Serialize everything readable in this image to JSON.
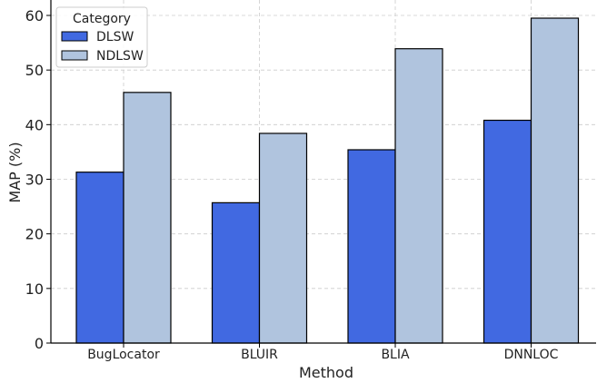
{
  "chart_data": {
    "type": "bar",
    "categories": [
      "BugLocator",
      "BLUIR",
      "BLIA",
      "DNNLOC"
    ],
    "series": [
      {
        "name": "DLSW",
        "values": [
          31.3,
          25.7,
          35.4,
          40.8
        ],
        "color": "#4169e1"
      },
      {
        "name": "NDLSW",
        "values": [
          45.9,
          38.4,
          53.9,
          59.5
        ],
        "color": "#b0c4de"
      }
    ],
    "title": "",
    "xlabel": "Method",
    "ylabel": "MAP (%)",
    "ylim": [
      0,
      60
    ],
    "yticks": [
      "0",
      "10",
      "20",
      "30",
      "40",
      "50",
      "60"
    ],
    "legend_title": "Category",
    "legend_position": "top-left",
    "grid": true
  }
}
